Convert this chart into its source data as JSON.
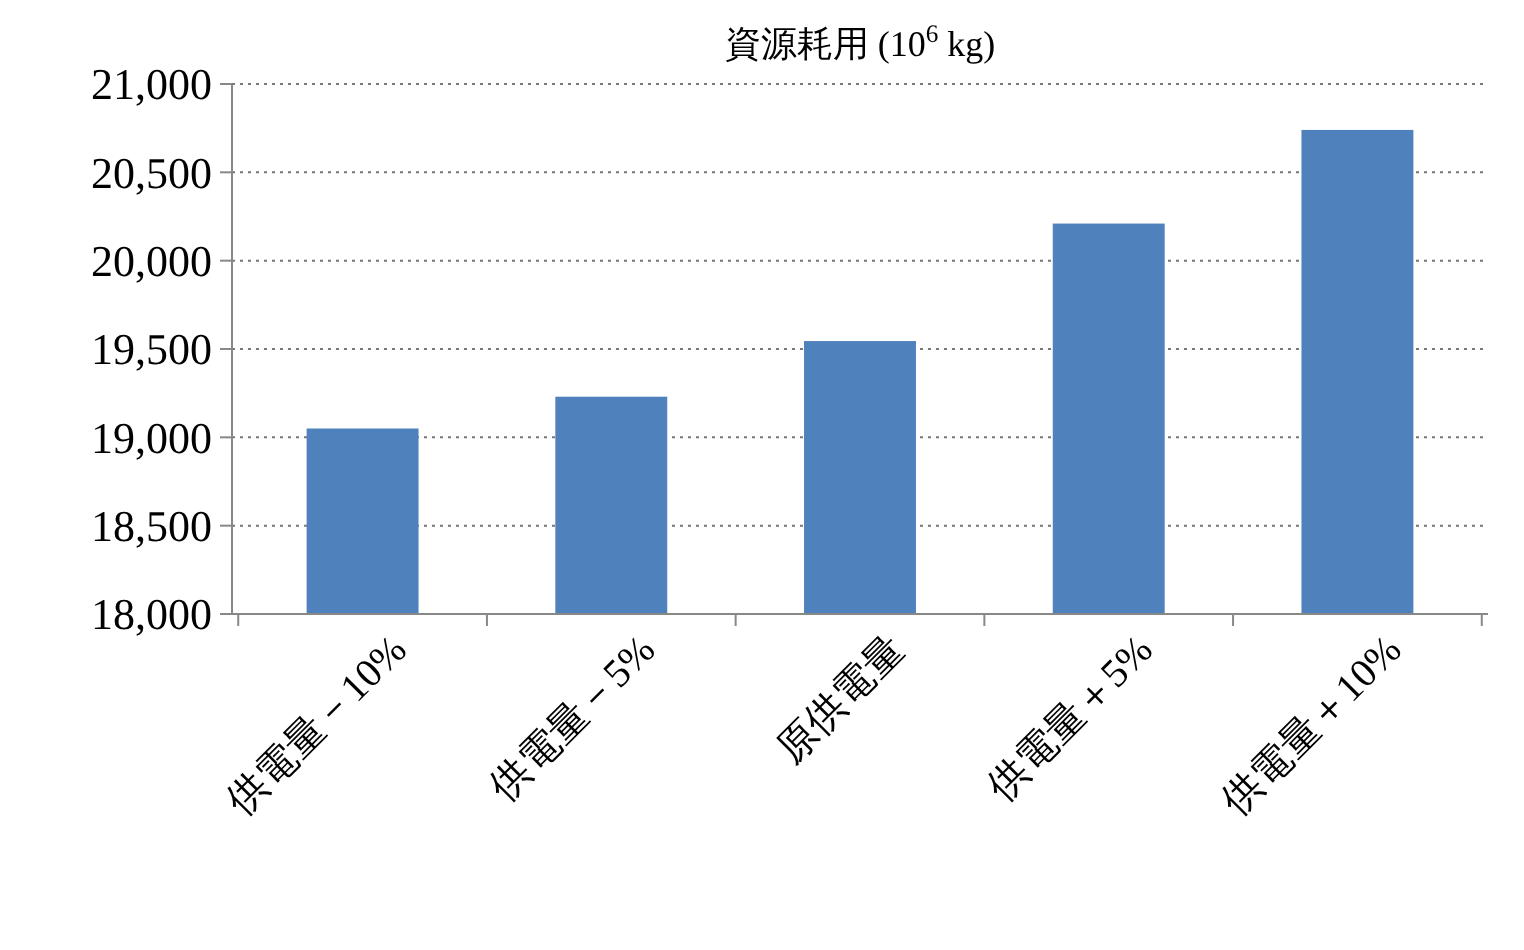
{
  "chart_data": {
    "type": "bar",
    "title": "資源耗用 (10$^{6}$ kg)",
    "categories": [
      "供電量－10%",
      "供電量－5%",
      "原供電量",
      "供電量＋5%",
      "供電量＋10%"
    ],
    "values": [
      19050,
      19230,
      19545,
      20210,
      20740
    ],
    "color": "#4f81bd",
    "ylim": [
      18000,
      21000
    ],
    "yticks": [
      {
        "value": 18000,
        "label": "18,000"
      },
      {
        "value": 18500,
        "label": "18,500"
      },
      {
        "value": 19000,
        "label": "19,000"
      },
      {
        "value": 19500,
        "label": "19,500"
      },
      {
        "value": 20000,
        "label": "20,000"
      },
      {
        "value": 20500,
        "label": "20,500"
      },
      {
        "value": 21000,
        "label": "21,000"
      }
    ],
    "grid": "y"
  }
}
